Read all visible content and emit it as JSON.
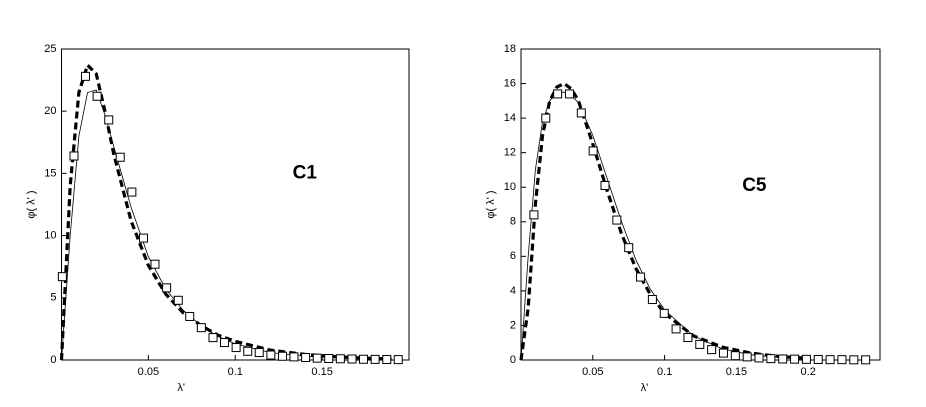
{
  "chart_data": [
    {
      "type": "line",
      "annotation": "C1",
      "xlabel": "λ'",
      "ylabel": "φ( λ' )",
      "xlim": [
        0,
        0.2
      ],
      "ylim": [
        0,
        25
      ],
      "xticks": [
        0.05,
        0.1,
        0.15
      ],
      "yticks": [
        0,
        5,
        10,
        15,
        20,
        25
      ],
      "series": [
        {
          "style": "solid",
          "color": "#000000",
          "x": [
            0,
            0.005,
            0.01,
            0.015,
            0.02,
            0.025,
            0.03,
            0.04,
            0.05,
            0.06,
            0.07,
            0.08,
            0.09,
            0.1,
            0.12,
            0.14,
            0.16,
            0.18,
            0.19
          ],
          "values": [
            0,
            10,
            18,
            21.5,
            21.7,
            19.7,
            17.2,
            12.3,
            8.3,
            5.7,
            4.0,
            2.8,
            1.9,
            1.3,
            0.6,
            0.3,
            0.15,
            0.08,
            0.05
          ]
        },
        {
          "style": "dashed",
          "color": "#000000",
          "x": [
            0,
            0.005,
            0.01,
            0.015,
            0.02,
            0.025,
            0.03,
            0.04,
            0.05,
            0.06,
            0.07,
            0.08,
            0.09,
            0.1,
            0.12,
            0.14,
            0.16,
            0.18,
            0.19
          ],
          "values": [
            0,
            14,
            21.5,
            23.7,
            23,
            20,
            16.6,
            11.2,
            7.6,
            5.3,
            3.8,
            2.8,
            2.0,
            1.5,
            0.8,
            0.45,
            0.25,
            0.12,
            0.08
          ]
        },
        {
          "style": "square",
          "color": "#000000",
          "x": [
            0.0005,
            0.0072,
            0.0138,
            0.0205,
            0.0272,
            0.0338,
            0.0405,
            0.0472,
            0.0538,
            0.0605,
            0.0672,
            0.0738,
            0.0805,
            0.0872,
            0.0938,
            0.1005,
            0.1072,
            0.1138,
            0.1205,
            0.1272,
            0.1338,
            0.1405,
            0.1472,
            0.1538,
            0.1605,
            0.1672,
            0.1738,
            0.1805,
            0.1872,
            0.1938
          ],
          "values": [
            6.7,
            16.4,
            22.8,
            21.2,
            19.3,
            16.3,
            13.5,
            9.8,
            7.7,
            5.8,
            4.8,
            3.5,
            2.6,
            1.8,
            1.4,
            1.0,
            0.7,
            0.6,
            0.4,
            0.3,
            0.25,
            0.2,
            0.15,
            0.12,
            0.1,
            0.08,
            0.06,
            0.05,
            0.04,
            0.03
          ]
        }
      ]
    },
    {
      "type": "line",
      "annotation": "C5",
      "xlabel": "λ'",
      "ylabel": "φ( λ' )",
      "xlim": [
        0,
        0.25
      ],
      "ylim": [
        0,
        18
      ],
      "xticks": [
        0.05,
        0.1,
        0.15,
        0.2
      ],
      "yticks": [
        0,
        2,
        4,
        6,
        8,
        10,
        12,
        14,
        16,
        18
      ],
      "series": [
        {
          "style": "solid",
          "color": "#000000",
          "x": [
            0,
            0.005,
            0.01,
            0.015,
            0.02,
            0.025,
            0.03,
            0.035,
            0.04,
            0.05,
            0.06,
            0.07,
            0.08,
            0.09,
            0.1,
            0.12,
            0.14,
            0.16,
            0.18,
            0.2
          ],
          "values": [
            0,
            6,
            11,
            13.8,
            15,
            15.5,
            15.5,
            15.3,
            14.9,
            13,
            10.5,
            8,
            5.8,
            4.1,
            2.9,
            1.4,
            0.65,
            0.3,
            0.15,
            0.07
          ]
        },
        {
          "style": "dashed",
          "color": "#000000",
          "x": [
            0,
            0.005,
            0.01,
            0.015,
            0.02,
            0.025,
            0.03,
            0.035,
            0.04,
            0.05,
            0.06,
            0.07,
            0.08,
            0.09,
            0.1,
            0.12,
            0.14,
            0.16,
            0.18,
            0.2
          ],
          "values": [
            0,
            3,
            9,
            13,
            15,
            15.8,
            16,
            15.7,
            15,
            12.5,
            9.8,
            7.3,
            5.3,
            3.8,
            2.7,
            1.4,
            0.75,
            0.4,
            0.2,
            0.1
          ]
        },
        {
          "style": "square",
          "color": "#000000",
          "x": [
            0.009,
            0.01725,
            0.0255,
            0.03375,
            0.042,
            0.05025,
            0.0585,
            0.06675,
            0.075,
            0.08325,
            0.0915,
            0.09975,
            0.108,
            0.11625,
            0.1245,
            0.13275,
            0.141,
            0.14925,
            0.1575,
            0.16575,
            0.174,
            0.18225,
            0.1905,
            0.19875,
            0.207,
            0.21525,
            0.2235,
            0.23175,
            0.24
          ],
          "values": [
            8.4,
            14.0,
            15.4,
            15.4,
            14.3,
            12.1,
            10.1,
            8.1,
            6.5,
            4.8,
            3.5,
            2.7,
            1.8,
            1.3,
            0.9,
            0.6,
            0.4,
            0.25,
            0.18,
            0.12,
            0.08,
            0.06,
            0.05,
            0.04,
            0.03,
            0.02,
            0.02,
            0.01,
            0.01
          ]
        }
      ]
    }
  ]
}
